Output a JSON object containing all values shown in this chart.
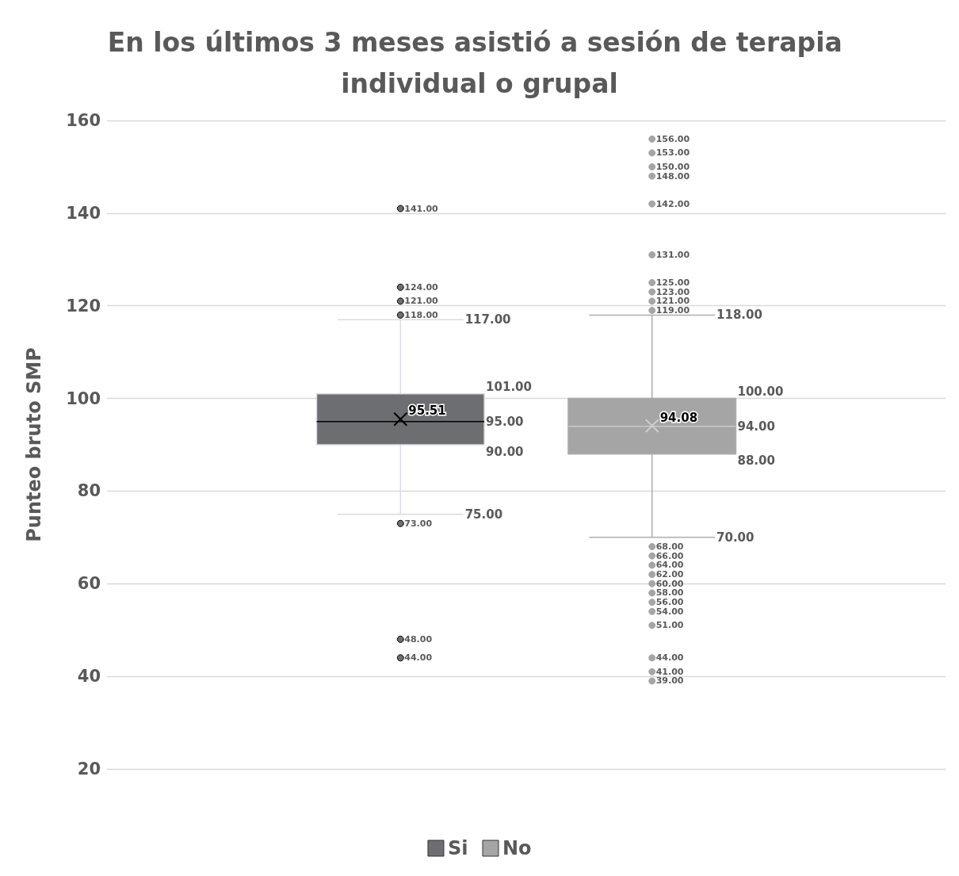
{
  "chart_data": {
    "type": "box",
    "title": "En los últimos 3 meses asistió a sesión de terapia individual o grupal",
    "ylabel": "Punteo bruto SMP",
    "categories": [
      null
    ],
    "series": [
      {
        "name": "Si",
        "color": "#6d6e71",
        "boxes": [
          {
            "low": 75,
            "q1": 90,
            "median": 95,
            "q3": 101,
            "high": 117,
            "mean": 95.51,
            "outliers": [
              141,
              124,
              121,
              118,
              73,
              48,
              44
            ]
          }
        ],
        "value_labels": [
          {
            "low": "75.00",
            "q1": "90.00",
            "median": "95.00",
            "q3": "101.00",
            "high": "117.00",
            "mean": "95.51",
            "outliers": [
              "141.00",
              "124.00",
              "121.00",
              "118.00",
              "73.00",
              "48.00",
              "44.00"
            ]
          }
        ]
      },
      {
        "name": "No",
        "color": "#a5a5a5",
        "boxes": [
          {
            "low": 70,
            "q1": 88,
            "median": 94,
            "q3": 100,
            "high": 118,
            "mean": 94.08,
            "outliers": [
              156,
              153,
              150,
              148,
              142,
              131,
              125,
              123,
              121,
              119,
              68,
              66,
              64,
              62,
              60,
              58,
              56,
              54,
              51,
              44,
              41,
              39
            ]
          }
        ],
        "value_labels": [
          {
            "low": "70.00",
            "q1": "88.00",
            "median": "94.00",
            "q3": "100.00",
            "high": "118.00",
            "mean": "94.08",
            "outliers": [
              "156.00",
              "153.00",
              "150.00",
              "148.00",
              "142.00",
              "131.00",
              "125.00",
              "123.00",
              "121.00",
              "119.00",
              "68.00",
              "66.00",
              "64.00",
              "62.00",
              "60.00",
              "58.00",
              "56.00",
              "54.00",
              "51.00",
              "44.00",
              "41.00",
              "39.00"
            ]
          }
        ]
      }
    ],
    "ylim": [
      20,
      160
    ],
    "yticks": [
      20,
      40,
      60,
      80,
      100,
      120,
      140,
      160
    ],
    "grid": "y",
    "legend": "bottom",
    "marker": "circle"
  }
}
